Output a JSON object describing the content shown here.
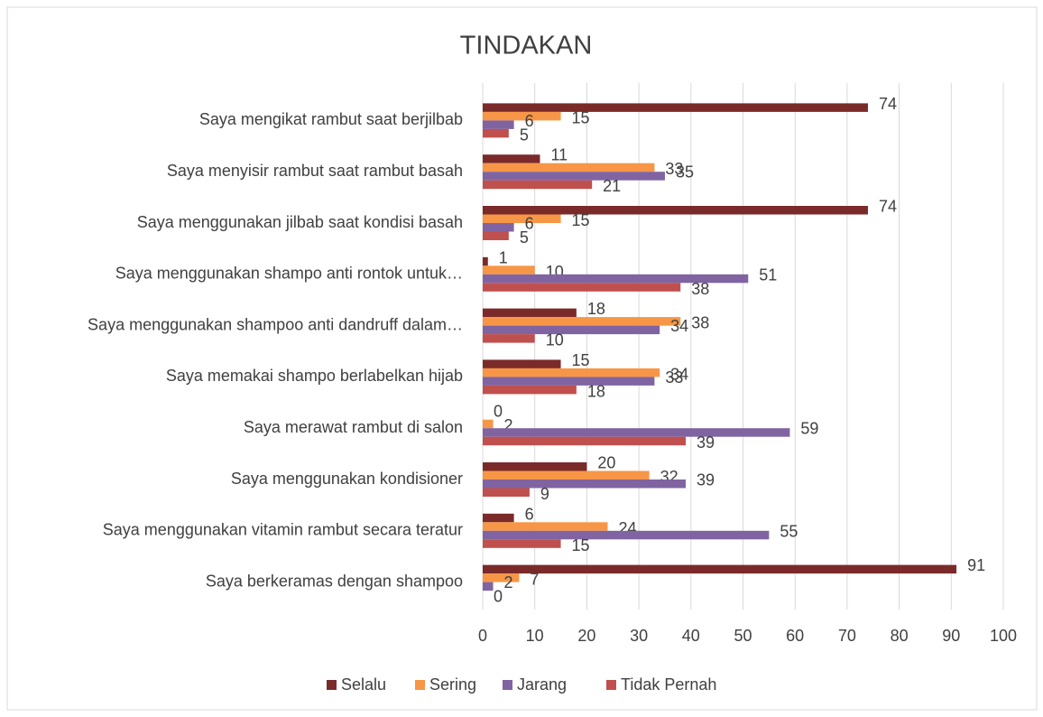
{
  "chart_data": {
    "type": "hbar",
    "title": "TINDAKAN",
    "categories": [
      "Saya mengikat rambut saat berjilbab",
      "Saya menyisir rambut saat rambut basah",
      "Saya menggunakan jilbab saat kondisi basah",
      "Saya menggunakan shampo anti rontok untuk…",
      "Saya menggunakan shampoo anti dandruff dalam…",
      "Saya memakai shampo berlabelkan hijab",
      "Saya merawat rambut di salon",
      "Saya menggunakan kondisioner",
      "Saya menggunakan vitamin rambut secara teratur",
      "Saya berkeramas dengan shampoo"
    ],
    "series": [
      {
        "name": "Selalu",
        "color": "#7b2a2a",
        "values": [
          74,
          11,
          74,
          1,
          18,
          15,
          0,
          20,
          6,
          91
        ]
      },
      {
        "name": "Sering",
        "color": "#f79646",
        "values": [
          15,
          33,
          15,
          10,
          38,
          34,
          2,
          32,
          24,
          7
        ]
      },
      {
        "name": "Jarang",
        "color": "#8064a2",
        "values": [
          6,
          35,
          6,
          51,
          34,
          33,
          59,
          39,
          55,
          2
        ]
      },
      {
        "name": "Tidak Pernah",
        "color": "#c0504d",
        "values": [
          5,
          21,
          5,
          38,
          10,
          18,
          39,
          9,
          15,
          0
        ]
      }
    ],
    "xlim": [
      0,
      100
    ],
    "xticks": [
      0,
      10,
      20,
      30,
      40,
      50,
      60,
      70,
      80,
      90,
      100
    ],
    "grid": true,
    "legend": "bottom"
  }
}
